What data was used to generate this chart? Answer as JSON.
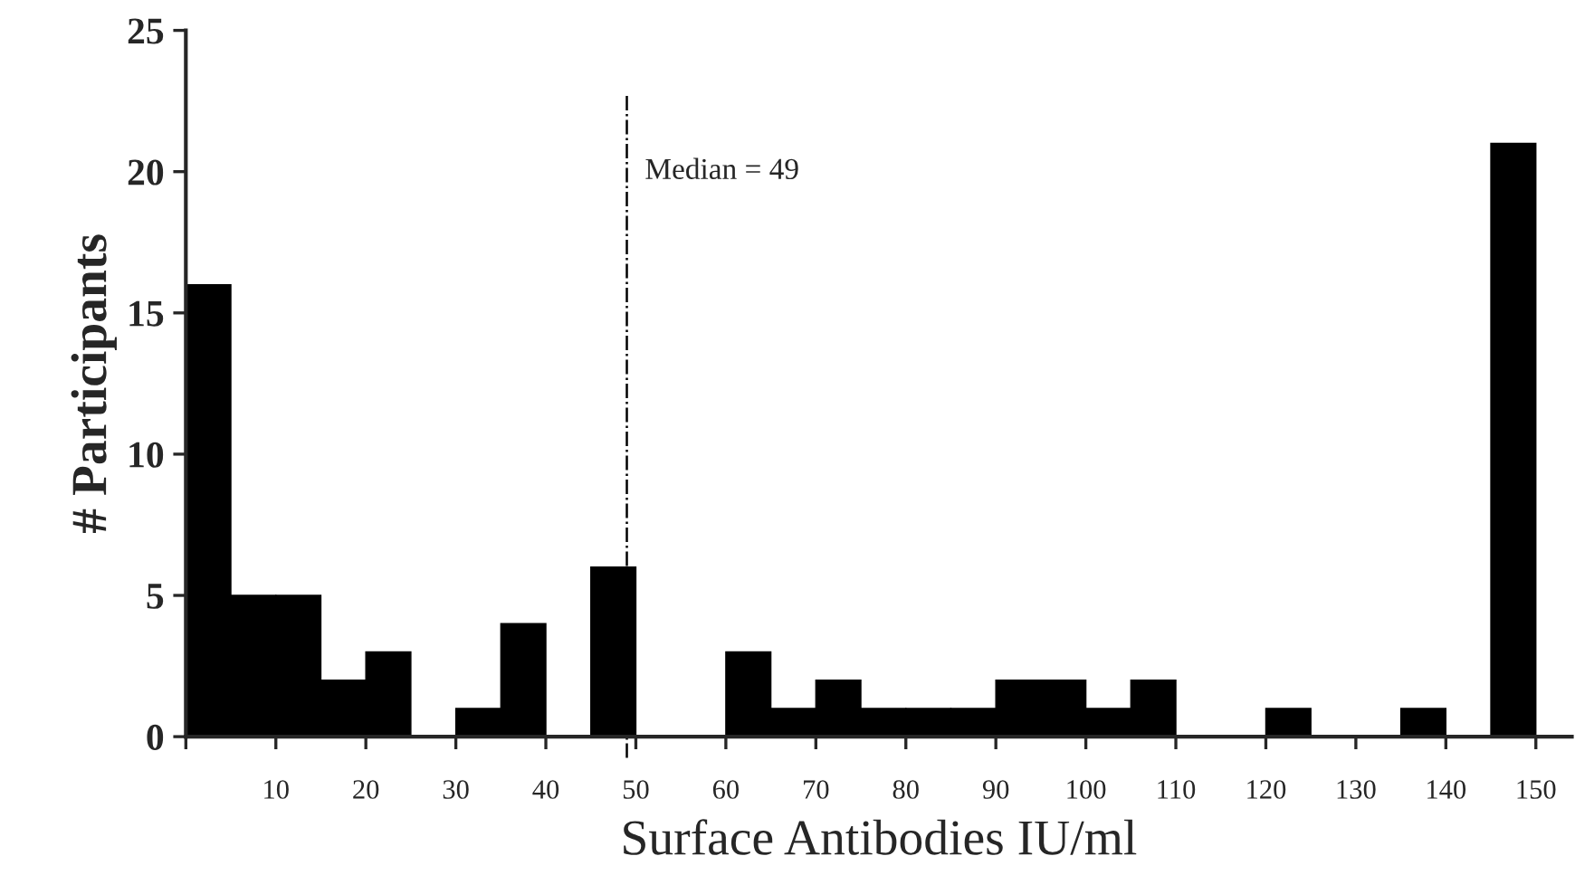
{
  "chart_data": {
    "type": "histogram",
    "xlabel": "Surface Antibodies IU/ml",
    "ylabel": "# Participants",
    "color": "#000000",
    "bins": [
      0,
      5,
      10,
      15,
      20,
      25,
      30,
      35,
      40,
      45,
      50,
      55,
      60,
      65,
      70,
      75,
      80,
      85,
      90,
      95,
      100,
      105,
      110,
      115,
      120,
      125,
      130,
      135,
      140,
      145,
      150
    ],
    "values": [
      16,
      5,
      5,
      2,
      3,
      0,
      1,
      4,
      0,
      6,
      0,
      0,
      3,
      1,
      2,
      1,
      1,
      1,
      2,
      2,
      1,
      2,
      0,
      0,
      1,
      0,
      0,
      1,
      0,
      21
    ],
    "xlim": [
      0,
      154
    ],
    "ylim": [
      0,
      25
    ],
    "xticks": [
      {
        "value": 0,
        "label": null
      },
      10,
      20,
      30,
      40,
      50,
      60,
      70,
      80,
      90,
      100,
      110,
      120,
      130,
      140,
      150
    ],
    "yticks": [
      0,
      5,
      10,
      15,
      20,
      25
    ],
    "ref_lines": [
      {
        "axis": "x",
        "value": 49,
        "label": "Median = 49",
        "color": "#000000",
        "line_style": "dashdot"
      }
    ],
    "grid": false,
    "legend": false
  }
}
